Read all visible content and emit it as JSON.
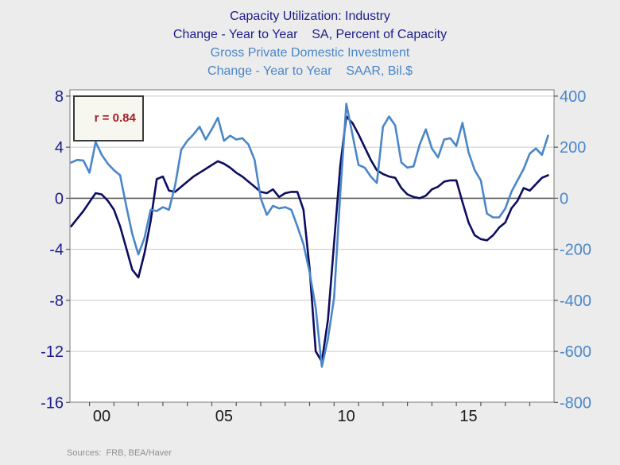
{
  "header": {
    "title_line1": "Capacity Utilization: Industry",
    "title_line2": "Change - Year to Year    SA, Percent of Capacity",
    "subtitle_line1": "Gross Private Domestic Investment",
    "subtitle_line2": "Change - Year to Year    SAAR, Bil.$"
  },
  "footer": {
    "source": "Sources:  FRB, BEA/Haver"
  },
  "colors": {
    "background": "#ececec",
    "plot_background": "#ffffff",
    "frame": "#8c8c8c",
    "grid": "#c9c9c9",
    "zero_line": "#5a5a5a",
    "tick": "#555555",
    "navy_series": "#0d0d60",
    "blue_series": "#4a86c9",
    "title_navy": "#1d1d8c",
    "x_label": "#1a1a1a",
    "r_text": "#a51d28",
    "r_box_bg": "#f7f7f0",
    "r_box_border": "#3a3a3a",
    "source_text": "#8f8f8f"
  },
  "chart_data": {
    "type": "line",
    "title": "Capacity Utilization: Industry / Gross Private Domestic Investment",
    "annotation": "r = 0.84",
    "legend": "none",
    "grid": true,
    "x_ticks": {
      "labels": [
        "00",
        "05",
        "10",
        "15"
      ],
      "years": [
        2000,
        2005,
        2010,
        2015
      ]
    },
    "x_minor_tick_years": [
      2000,
      2001,
      2002,
      2003,
      2004,
      2005,
      2006,
      2007,
      2008,
      2009,
      2010,
      2011,
      2012,
      2013,
      2014,
      2015,
      2016,
      2017,
      2018
    ],
    "xlim": [
      1999.2,
      2019.0
    ],
    "y_left": {
      "label": "SA, Percent of Capacity, Change - Year to Year",
      "ticks": [
        8,
        4,
        0,
        -4,
        -8,
        -12,
        -16
      ],
      "range": [
        -16,
        8.5
      ]
    },
    "y_right": {
      "label": "SAAR, Bil.$, Change - Year to Year",
      "ticks": [
        400,
        200,
        0,
        -200,
        -400,
        -600,
        -800
      ],
      "range": [
        -800,
        425
      ]
    },
    "x": [
      1999.25,
      1999.5,
      1999.75,
      2000.0,
      2000.25,
      2000.5,
      2000.75,
      2001.0,
      2001.25,
      2001.5,
      2001.75,
      2002.0,
      2002.25,
      2002.5,
      2002.75,
      2003.0,
      2003.25,
      2003.5,
      2003.75,
      2004.0,
      2004.25,
      2004.5,
      2004.75,
      2005.0,
      2005.25,
      2005.5,
      2005.75,
      2006.0,
      2006.25,
      2006.5,
      2006.75,
      2007.0,
      2007.25,
      2007.5,
      2007.75,
      2008.0,
      2008.25,
      2008.5,
      2008.75,
      2009.0,
      2009.25,
      2009.5,
      2009.75,
      2010.0,
      2010.25,
      2010.5,
      2010.75,
      2011.0,
      2011.25,
      2011.5,
      2011.75,
      2012.0,
      2012.25,
      2012.5,
      2012.75,
      2013.0,
      2013.25,
      2013.5,
      2013.75,
      2014.0,
      2014.25,
      2014.5,
      2014.75,
      2015.0,
      2015.25,
      2015.5,
      2015.75,
      2016.0,
      2016.25,
      2016.5,
      2016.75,
      2017.0,
      2017.25,
      2017.5,
      2017.75,
      2018.0,
      2018.25,
      2018.5,
      2018.75
    ],
    "series": [
      {
        "name": "Capacity Utilization: Industry, Change - Year to Year (SA, Percent of Capacity)",
        "axis": "left",
        "color": "#0d0d60",
        "values": [
          -2.2,
          -1.6,
          -1.0,
          -0.3,
          0.4,
          0.3,
          -0.2,
          -0.9,
          -2.2,
          -3.9,
          -5.6,
          -6.2,
          -4.3,
          -1.8,
          1.5,
          1.7,
          0.6,
          0.5,
          0.9,
          1.3,
          1.7,
          2.0,
          2.3,
          2.6,
          2.9,
          2.7,
          2.4,
          2.0,
          1.7,
          1.3,
          0.9,
          0.5,
          0.4,
          0.7,
          0.1,
          0.4,
          0.5,
          0.5,
          -0.9,
          -5.5,
          -12.0,
          -12.8,
          -9.5,
          -3.5,
          2.5,
          6.4,
          5.9,
          5.0,
          4.0,
          3.0,
          2.2,
          1.9,
          1.7,
          1.6,
          0.8,
          0.3,
          0.1,
          0.0,
          0.2,
          0.7,
          0.9,
          1.3,
          1.4,
          1.4,
          -0.3,
          -1.9,
          -2.9,
          -3.2,
          -3.3,
          -2.9,
          -2.3,
          -1.9,
          -0.8,
          -0.2,
          0.8,
          0.6,
          1.1,
          1.6,
          1.8
        ]
      },
      {
        "name": "Gross Private Domestic Investment, Change - Year to Year (SAAR, Bil.$)",
        "axis": "right",
        "color": "#4a86c9",
        "values": [
          140,
          150,
          148,
          100,
          220,
          170,
          135,
          110,
          90,
          -30,
          -140,
          -220,
          -155,
          -45,
          -50,
          -35,
          -45,
          50,
          190,
          225,
          250,
          280,
          230,
          270,
          315,
          225,
          245,
          230,
          235,
          210,
          150,
          0,
          -65,
          -30,
          -40,
          -35,
          -45,
          -110,
          -180,
          -290,
          -430,
          -660,
          -550,
          -390,
          15,
          370,
          250,
          130,
          120,
          85,
          60,
          280,
          320,
          285,
          140,
          120,
          125,
          210,
          270,
          195,
          160,
          230,
          235,
          205,
          295,
          180,
          110,
          70,
          -60,
          -75,
          -75,
          -40,
          25,
          70,
          115,
          175,
          195,
          170,
          245
        ]
      }
    ]
  }
}
